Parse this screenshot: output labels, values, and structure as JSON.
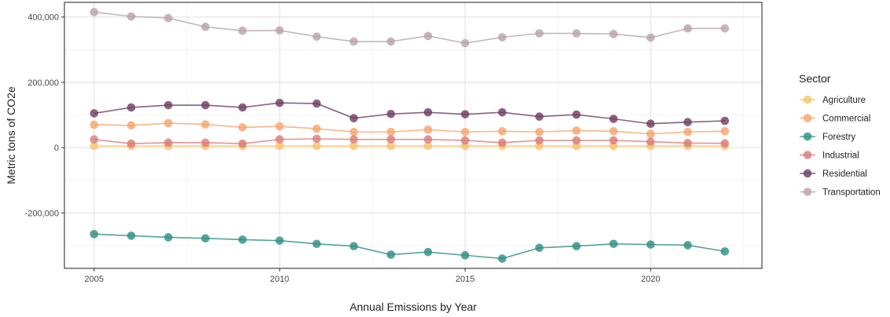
{
  "chart_data": {
    "type": "line",
    "xlabel": "Annual Emissions by Year",
    "ylabel": "Metric tons of CO2e",
    "xlim": [
      2004.2,
      2023
    ],
    "ylim": [
      -370000,
      445000
    ],
    "x_ticks": [
      2005,
      2010,
      2015,
      2020
    ],
    "y_ticks": [
      400000,
      200000,
      0,
      -200000
    ],
    "x_tick_labels": [
      "2005",
      "2010",
      "2015",
      "2020"
    ],
    "y_tick_labels": [
      "400,000",
      "200,000",
      "0",
      "-200,000"
    ],
    "grid": true,
    "legend_position": "right",
    "legend_title": "Sector",
    "x": [
      2005,
      2006,
      2007,
      2008,
      2009,
      2010,
      2011,
      2012,
      2013,
      2014,
      2015,
      2016,
      2017,
      2018,
      2019,
      2020,
      2021,
      2022
    ],
    "series": [
      {
        "name": "Agriculture",
        "color": "#fbc26a",
        "values": [
          5000,
          5000,
          5000,
          5000,
          5000,
          5000,
          5000,
          5000,
          5000,
          5000,
          5000,
          5000,
          5000,
          5000,
          5000,
          5000,
          5000,
          5000
        ]
      },
      {
        "name": "Commercial",
        "color": "#f7a46a",
        "values": [
          70000,
          68000,
          75000,
          71000,
          62000,
          65000,
          58000,
          48000,
          48000,
          55000,
          48000,
          50000,
          48000,
          52000,
          50000,
          42000,
          48000,
          50000
        ]
      },
      {
        "name": "Forestry",
        "color": "#2a8d80",
        "values": [
          -265000,
          -270000,
          -275000,
          -278000,
          -282000,
          -285000,
          -295000,
          -302000,
          -328000,
          -320000,
          -330000,
          -340000,
          -307000,
          -302000,
          -295000,
          -297000,
          -299000,
          -318000
        ]
      },
      {
        "name": "Industrial",
        "color": "#d97b79",
        "values": [
          25000,
          12000,
          15000,
          15000,
          12000,
          25000,
          27000,
          25000,
          25000,
          25000,
          22000,
          15000,
          22000,
          22000,
          22000,
          18000,
          14000,
          13000
        ]
      },
      {
        "name": "Residential",
        "color": "#6e3a61",
        "values": [
          105000,
          123000,
          130000,
          130000,
          123000,
          137000,
          135000,
          90000,
          103000,
          108000,
          102000,
          108000,
          95000,
          101000,
          88000,
          73000,
          78000,
          82000
        ]
      },
      {
        "name": "Transportation",
        "color": "#b8a3a8",
        "values": [
          415000,
          402000,
          397000,
          370000,
          358000,
          359000,
          340000,
          325000,
          325000,
          342000,
          320000,
          338000,
          350000,
          350000,
          348000,
          337000,
          365000,
          365000
        ]
      }
    ]
  }
}
